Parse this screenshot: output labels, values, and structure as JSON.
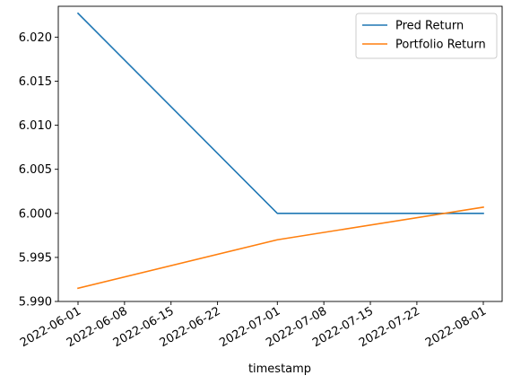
{
  "chart_data": {
    "type": "line",
    "title": "",
    "xlabel": "timestamp",
    "ylabel": "",
    "x": [
      "2022-06-01",
      "2022-07-01",
      "2022-08-01"
    ],
    "x_ticks": [
      "2022-06-01",
      "2022-06-08",
      "2022-06-15",
      "2022-06-22",
      "2022-07-01",
      "2022-07-08",
      "2022-07-15",
      "2022-07-22",
      "2022-08-01"
    ],
    "y_ticks": [
      "5.990",
      "5.995",
      "6.000",
      "6.005",
      "6.010",
      "6.015",
      "6.020"
    ],
    "ylim": [
      5.99,
      6.0235
    ],
    "grid": false,
    "legend_position": "top-right",
    "series": [
      {
        "name": "Pred Return",
        "color": "#1f77b4",
        "values": [
          6.0227,
          6.0,
          6.0
        ]
      },
      {
        "name": "Portfolio Return",
        "color": "#ff7f0e",
        "values": [
          5.9915,
          5.997,
          6.0007
        ]
      }
    ]
  }
}
